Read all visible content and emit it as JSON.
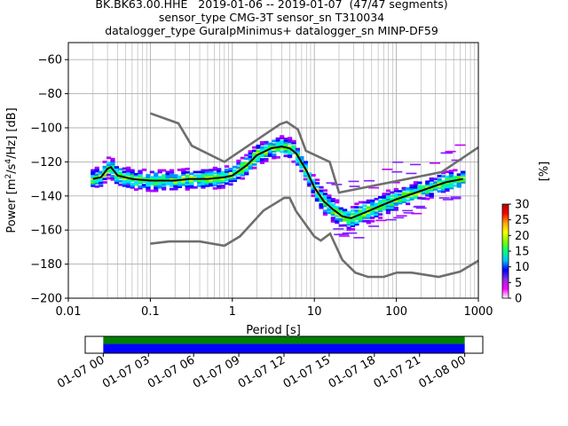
{
  "header": {
    "line1": "BK.BK63.00.HHE   2019-01-06 -- 2019-01-07  (47/47 segments)",
    "line2": "sensor_type CMG-3T sensor_sn T310034",
    "line3": "datalogger_type GuralpMinimus+ datalogger_sn MINP-DF59"
  },
  "chart_data": [
    {
      "type": "heatmap",
      "title": "BK.BK63.00.HHE   2019-01-06 -- 2019-01-07  (47/47 segments)",
      "xlabel": "Period [s]",
      "ylabel": "Power [m²/s⁴/Hz] [dB]",
      "x_scale": "log",
      "xlim": [
        0.01,
        1000
      ],
      "ylim": [
        -200,
        -50
      ],
      "x_ticks": [
        0.01,
        0.1,
        1,
        10,
        100,
        1000
      ],
      "x_tick_labels": [
        "0.01",
        "0.1",
        "1",
        "10",
        "100",
        "1000"
      ],
      "y_ticks": [
        -200,
        -180,
        -160,
        -140,
        -120,
        -100,
        -80,
        -60
      ],
      "y_tick_labels": [
        "−200",
        "−180",
        "−160",
        "−140",
        "−120",
        "−100",
        "−80",
        "−60"
      ],
      "grid": true,
      "colorbar": {
        "label": "[%]",
        "range": [
          0,
          30
        ],
        "ticks": [
          0,
          5,
          10,
          15,
          20,
          25,
          30
        ],
        "colors": [
          "#ffffff",
          "#ff00ff",
          "#8a2be2",
          "#0000ff",
          "#00bfff",
          "#00ff7f",
          "#7cfc00",
          "#ffff00",
          "#ffa500",
          "#ff0000",
          "#b00000"
        ]
      },
      "mode_curve": [
        [
          0.02,
          -130
        ],
        [
          0.025,
          -129
        ],
        [
          0.03,
          -124
        ],
        [
          0.033,
          -123
        ],
        [
          0.04,
          -128
        ],
        [
          0.06,
          -130
        ],
        [
          0.1,
          -131
        ],
        [
          0.2,
          -131
        ],
        [
          0.3,
          -130
        ],
        [
          0.5,
          -130
        ],
        [
          0.8,
          -129
        ],
        [
          1,
          -128
        ],
        [
          1.5,
          -122
        ],
        [
          2,
          -116
        ],
        [
          3,
          -112
        ],
        [
          4,
          -111
        ],
        [
          5,
          -112
        ],
        [
          6,
          -115
        ],
        [
          8,
          -125
        ],
        [
          10,
          -135
        ],
        [
          13,
          -143
        ],
        [
          17,
          -148
        ],
        [
          22,
          -152
        ],
        [
          28,
          -153
        ],
        [
          40,
          -150
        ],
        [
          70,
          -145
        ],
        [
          100,
          -142
        ],
        [
          200,
          -137
        ],
        [
          400,
          -132
        ],
        [
          650,
          -130
        ]
      ],
      "nhnm": [
        [
          0.1,
          -91.5
        ],
        [
          0.22,
          -97.4
        ],
        [
          0.32,
          -110.5
        ],
        [
          0.8,
          -120
        ],
        [
          3.8,
          -97.9
        ],
        [
          4.6,
          -96.5
        ],
        [
          6.3,
          -101
        ],
        [
          7.9,
          -113.5
        ],
        [
          15.4,
          -120
        ],
        [
          20,
          -138
        ],
        [
          354.8,
          -126
        ],
        [
          1000,
          -111.5
        ]
      ],
      "nlnm": [
        [
          0.1,
          -168
        ],
        [
          0.17,
          -166.7
        ],
        [
          0.4,
          -166.7
        ],
        [
          0.8,
          -169.2
        ],
        [
          1.24,
          -163.7
        ],
        [
          2.4,
          -148.6
        ],
        [
          4.3,
          -141.1
        ],
        [
          5,
          -141.1
        ],
        [
          6,
          -149
        ],
        [
          10,
          -163.8
        ],
        [
          12,
          -166.2
        ],
        [
          15.6,
          -162.1
        ],
        [
          21.9,
          -177.5
        ],
        [
          31.6,
          -185
        ],
        [
          45,
          -187.5
        ],
        [
          70,
          -187.5
        ],
        [
          101,
          -185
        ],
        [
          154,
          -185
        ],
        [
          328,
          -187.5
        ],
        [
          600,
          -184.4
        ],
        [
          1000,
          -178
        ]
      ]
    },
    {
      "type": "bar",
      "title": "",
      "xlabel": "",
      "ylabel": "",
      "x_tick_labels": [
        "01-07 00",
        "01-07 03",
        "01-07 06",
        "01-07 09",
        "01-07 12",
        "01-07 15",
        "01-07 18",
        "01-07 21",
        "01-08 00"
      ],
      "x_ticks_hours": [
        0,
        3,
        6,
        9,
        12,
        15,
        18,
        21,
        24
      ],
      "xlim_hours": [
        -1.2,
        25.2
      ],
      "coverage_hours": [
        0,
        24
      ],
      "coverage_colors": {
        "data": "#0000ff",
        "psd": "#008000"
      }
    }
  ]
}
